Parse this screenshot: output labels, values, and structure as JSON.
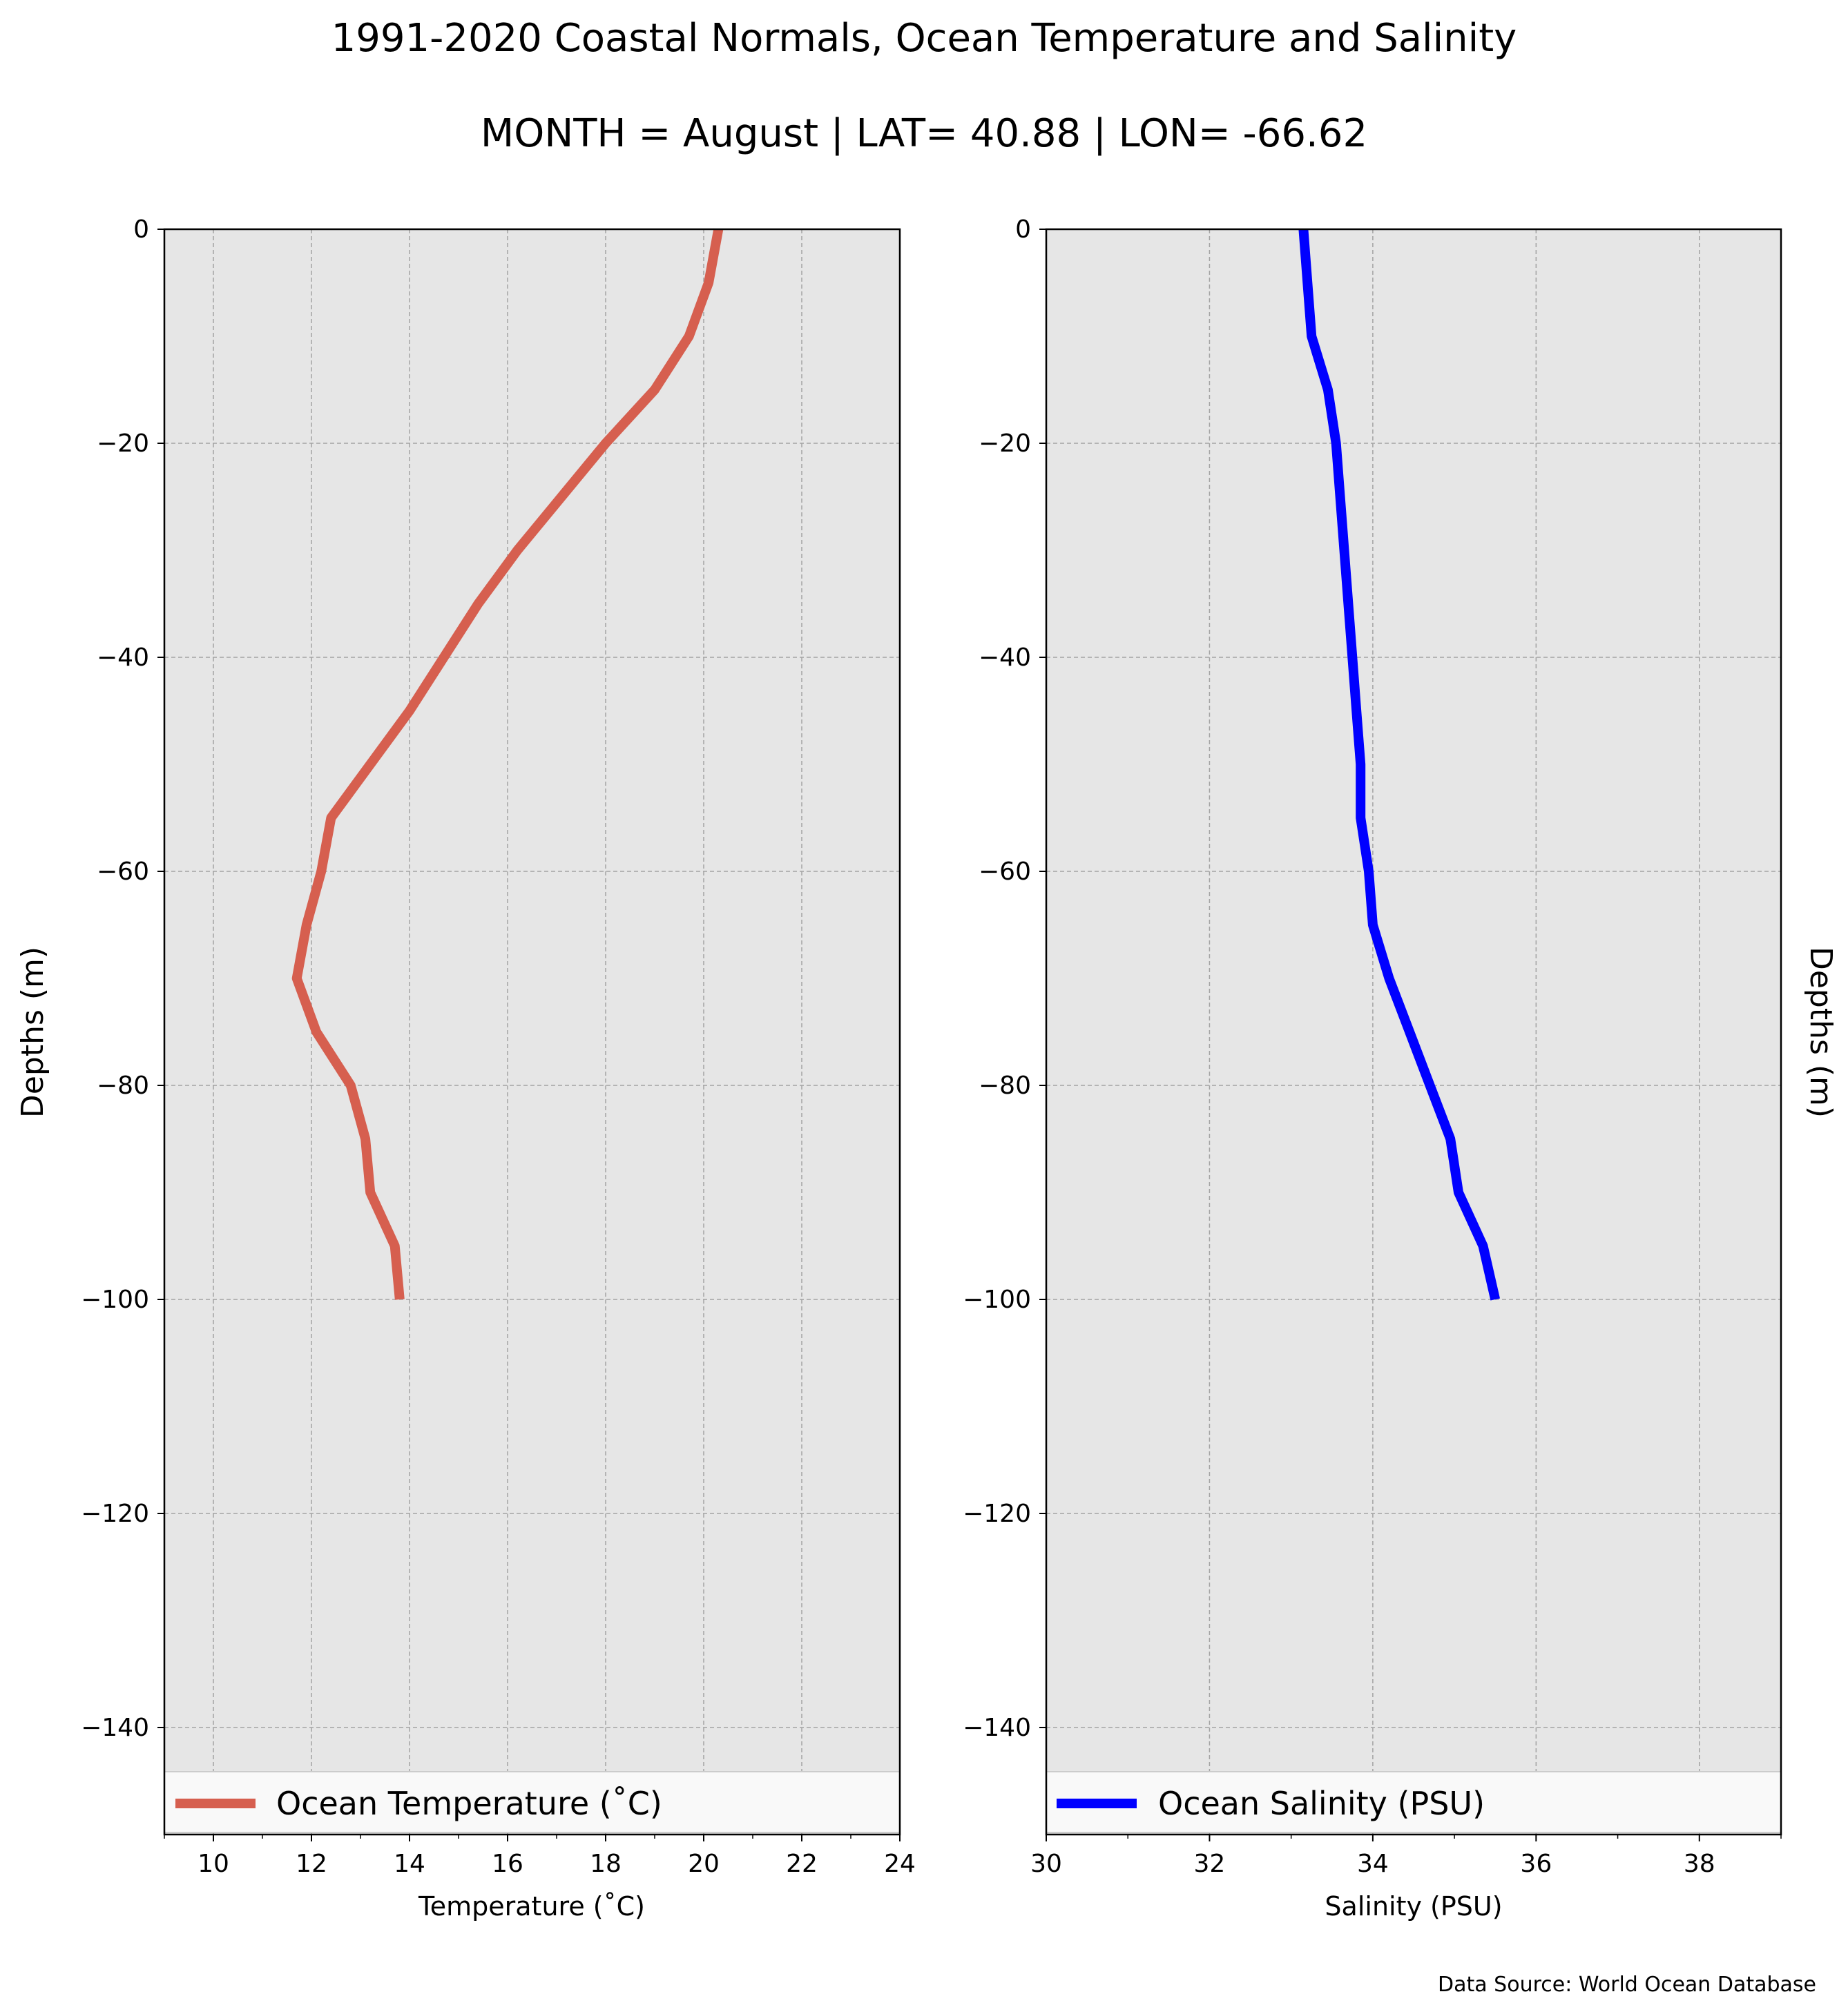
{
  "figure": {
    "title": "1991-2020 Coastal Normals, Ocean Temperature and Salinity",
    "subtitle": "MONTH = August | LAT= 40.88 | LON= -66.62",
    "source": "Data Source: World Ocean Database",
    "background": "#ffffff",
    "plot_background": "#e6e6e6"
  },
  "chart_data": [
    {
      "type": "line",
      "series": [
        {
          "name": "Ocean Temperature ($^\\circ$C)",
          "legend_label": "Ocean Temperature (˚C)",
          "color": "#d65f4f",
          "x": [
            20.3,
            20.1,
            19.7,
            19.0,
            18.0,
            17.1,
            16.2,
            15.4,
            14.7,
            14.0,
            13.2,
            12.4,
            12.2,
            11.9,
            11.7,
            12.1,
            12.8,
            13.1,
            13.2,
            13.7,
            13.8
          ],
          "y": [
            0,
            -5,
            -10,
            -15,
            -20,
            -25,
            -30,
            -35,
            -40,
            -45,
            -50,
            -55,
            -60,
            -65,
            -70,
            -75,
            -80,
            -85,
            -90,
            -95,
            -100
          ]
        }
      ],
      "title": "",
      "xlabel": "Temperature (˚C)",
      "ylabel": "Depths (m)",
      "xlim": [
        9,
        24
      ],
      "ylim": [
        -150,
        0
      ],
      "xticks": [
        10,
        12,
        14,
        16,
        18,
        20,
        22,
        24
      ],
      "yticks": [
        0,
        -20,
        -40,
        -60,
        -80,
        -100,
        -120,
        -140
      ],
      "xtick_labels": [
        "10",
        "12",
        "14",
        "16",
        "18",
        "20",
        "22",
        "24"
      ],
      "ytick_labels": [
        "0",
        "−20",
        "−40",
        "−60",
        "−80",
        "−100",
        "−120",
        "−140"
      ],
      "grid": true,
      "legend_location": "lower center"
    },
    {
      "type": "line",
      "series": [
        {
          "name": "Ocean Salinity (PSU)",
          "legend_label": "Ocean Salinity (PSU)",
          "color": "#0000ff",
          "x": [
            33.15,
            33.2,
            33.25,
            33.45,
            33.55,
            33.6,
            33.65,
            33.7,
            33.75,
            33.8,
            33.85,
            33.85,
            33.95,
            34.0,
            34.2,
            34.45,
            34.7,
            34.95,
            35.05,
            35.35,
            35.5
          ],
          "y": [
            0,
            -5,
            -10,
            -15,
            -20,
            -25,
            -30,
            -35,
            -40,
            -45,
            -50,
            -55,
            -60,
            -65,
            -70,
            -75,
            -80,
            -85,
            -90,
            -95,
            -100
          ]
        }
      ],
      "title": "",
      "xlabel": "Salinity (PSU)",
      "ylabel": "Depths (m)",
      "xlim": [
        30,
        39
      ],
      "ylim": [
        -150,
        0
      ],
      "xticks": [
        30,
        32,
        34,
        36,
        38
      ],
      "yticks": [
        0,
        -20,
        -40,
        -60,
        -80,
        -100,
        -120,
        -140
      ],
      "xtick_labels": [
        "30",
        "32",
        "34",
        "36",
        "38"
      ],
      "ytick_labels": [
        "0",
        "−20",
        "−40",
        "−60",
        "−80",
        "−100",
        "−120",
        "−140"
      ],
      "grid": true,
      "legend_location": "lower center"
    }
  ]
}
